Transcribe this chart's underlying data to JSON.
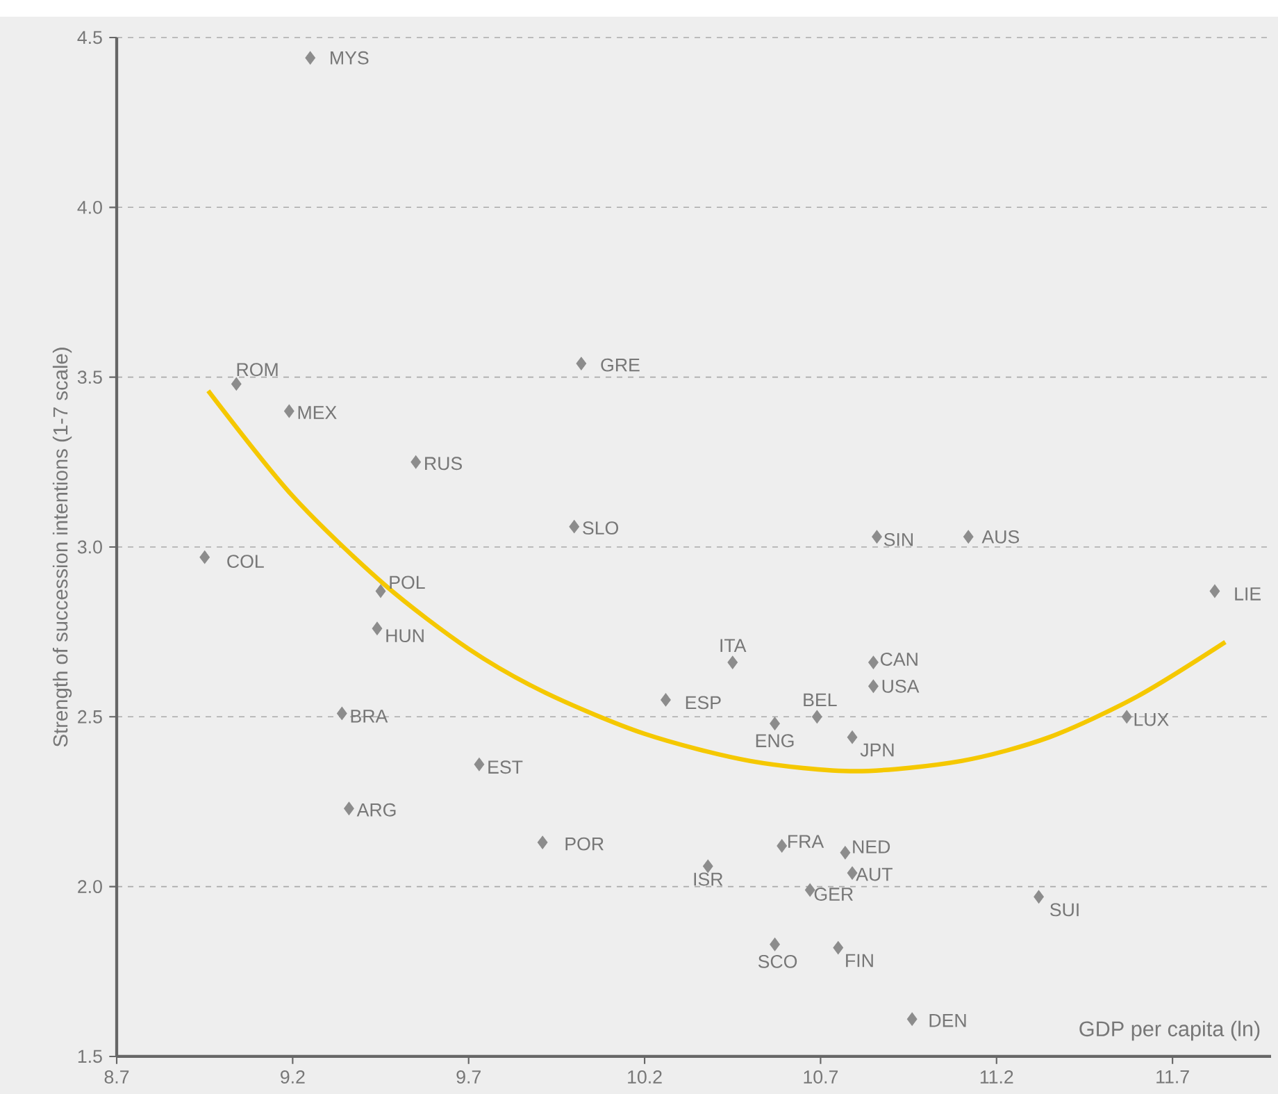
{
  "chart_data": {
    "type": "scatter",
    "xlabel": "GDP per capita (ln)",
    "ylabel": "Strength of succession intentions (1-7 scale)",
    "xlim": [
      8.7,
      11.98
    ],
    "ylim": [
      1.5,
      4.5
    ],
    "xticks": [
      8.7,
      9.2,
      9.7,
      10.2,
      10.7,
      11.2,
      11.7
    ],
    "yticks": [
      {
        "value": 1.5,
        "label": "1.5"
      },
      {
        "value": 2,
        "label": "2.0"
      },
      {
        "value": 2.5,
        "label": "2.5"
      },
      {
        "value": 3,
        "label": "3.0"
      },
      {
        "value": 3.5,
        "label": "3.5"
      },
      {
        "value": 4,
        "label": "4.0"
      },
      {
        "value": 4.5,
        "label": "4.5"
      }
    ],
    "grid": "y",
    "legend": false,
    "marker": "diamond",
    "series": [
      {
        "color": "#8c8c8c",
        "x": [
          9.25,
          9.04,
          9.19,
          9.55,
          10.02,
          10.0,
          8.95,
          9.45,
          9.44,
          9.34,
          9.73,
          9.36,
          9.91,
          10.26,
          10.45,
          10.57,
          10.69,
          10.79,
          10.85,
          10.85,
          10.86,
          11.12,
          11.82,
          11.57,
          10.59,
          10.77,
          10.79,
          10.38,
          10.67,
          11.32,
          10.57,
          10.75,
          10.96
        ],
        "values": [
          4.44,
          3.48,
          3.4,
          3.25,
          3.54,
          3.06,
          2.97,
          2.87,
          2.76,
          2.51,
          2.36,
          2.23,
          2.13,
          2.55,
          2.66,
          2.48,
          2.5,
          2.44,
          2.66,
          2.59,
          3.03,
          3.03,
          2.87,
          2.5,
          2.12,
          2.1,
          2.04,
          2.06,
          1.99,
          1.97,
          1.83,
          1.82,
          1.61
        ]
      },
      {
        "type": "line",
        "color": "#f5c800",
        "marker": "none",
        "x": [
          8.96,
          9.2,
          9.46,
          9.7,
          9.92,
          10.2,
          10.5,
          10.8,
          11.1,
          11.35,
          11.6,
          11.85
        ],
        "values": [
          3.46,
          3.15,
          2.89,
          2.7,
          2.57,
          2.45,
          2.37,
          2.34,
          2.37,
          2.44,
          2.56,
          2.72
        ]
      }
    ],
    "annotations": [
      {
        "text": "MYS",
        "x": 9.25,
        "y": 4.44
      },
      {
        "text": "ROM",
        "x": 9.04,
        "y": 3.48
      },
      {
        "text": "MEX",
        "x": 9.19,
        "y": 3.4
      },
      {
        "text": "RUS",
        "x": 9.55,
        "y": 3.25
      },
      {
        "text": "GRE",
        "x": 10.02,
        "y": 3.54
      },
      {
        "text": "SLO",
        "x": 10.0,
        "y": 3.06
      },
      {
        "text": "COL",
        "x": 8.95,
        "y": 2.97
      },
      {
        "text": "POL",
        "x": 9.45,
        "y": 2.87
      },
      {
        "text": "HUN",
        "x": 9.44,
        "y": 2.76
      },
      {
        "text": "BRA",
        "x": 9.34,
        "y": 2.51
      },
      {
        "text": "EST",
        "x": 9.73,
        "y": 2.36
      },
      {
        "text": "ARG",
        "x": 9.36,
        "y": 2.23
      },
      {
        "text": "POR",
        "x": 9.91,
        "y": 2.13
      },
      {
        "text": "ESP",
        "x": 10.26,
        "y": 2.55
      },
      {
        "text": "ITA",
        "x": 10.45,
        "y": 2.66
      },
      {
        "text": "ENG",
        "x": 10.57,
        "y": 2.48
      },
      {
        "text": "BEL",
        "x": 10.69,
        "y": 2.5
      },
      {
        "text": "JPN",
        "x": 10.79,
        "y": 2.44
      },
      {
        "text": "CAN",
        "x": 10.85,
        "y": 2.66
      },
      {
        "text": "USA",
        "x": 10.85,
        "y": 2.59
      },
      {
        "text": "SIN",
        "x": 10.86,
        "y": 3.03
      },
      {
        "text": "AUS",
        "x": 11.12,
        "y": 3.03
      },
      {
        "text": "LIE",
        "x": 11.82,
        "y": 2.87
      },
      {
        "text": "LUX",
        "x": 11.57,
        "y": 2.5
      },
      {
        "text": "FRA",
        "x": 10.59,
        "y": 2.12
      },
      {
        "text": "NED",
        "x": 10.77,
        "y": 2.1
      },
      {
        "text": "AUT",
        "x": 10.79,
        "y": 2.04
      },
      {
        "text": "ISR",
        "x": 10.38,
        "y": 2.06
      },
      {
        "text": "GER",
        "x": 10.67,
        "y": 1.99
      },
      {
        "text": "SUI",
        "x": 11.32,
        "y": 1.97
      },
      {
        "text": "SCO",
        "x": 10.57,
        "y": 1.83
      },
      {
        "text": "FIN",
        "x": 10.75,
        "y": 1.82
      },
      {
        "text": "DEN",
        "x": 10.96,
        "y": 1.61
      }
    ]
  }
}
